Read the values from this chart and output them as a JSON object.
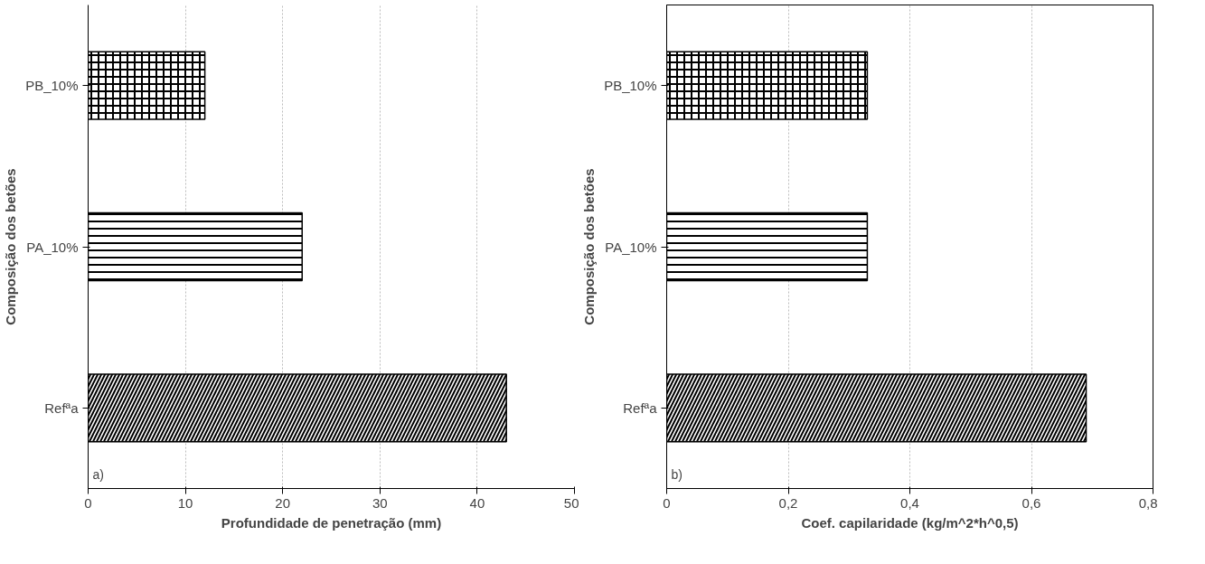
{
  "chart_data": [
    {
      "type": "bar",
      "orientation": "horizontal",
      "categories": [
        "PB_10%",
        "PA_10%",
        "Refªa"
      ],
      "values": [
        12,
        22,
        43
      ],
      "colors": [
        "#000000",
        "#000000",
        "#000000"
      ],
      "xlim": [
        0,
        50
      ],
      "xticks": [
        0,
        10,
        20,
        30,
        40,
        50
      ],
      "xlabel": "Profundidade de penetração (mm)",
      "ylabel": "Composição dos betões",
      "grid": "x",
      "annotations": [
        "a)"
      ]
    },
    {
      "type": "bar",
      "orientation": "horizontal",
      "categories": [
        "PB_10%",
        "PA_10%",
        "Refªa"
      ],
      "values": [
        0.33,
        0.33,
        0.69
      ],
      "colors": [
        "#000000",
        "#000000",
        "#000000"
      ],
      "xlim": [
        0,
        0.8
      ],
      "xticks": [
        {
          "value": 0,
          "label": "0"
        },
        {
          "value": 0.2,
          "label": "0,2"
        },
        {
          "value": 0.4,
          "label": "0,4"
        },
        {
          "value": 0.6,
          "label": "0,6"
        },
        {
          "value": 0.8,
          "label": "0,8"
        }
      ],
      "xlabel": "Coef. capilaridade (kg/m^2*h^0,5)",
      "ylabel": "Composição dos betões",
      "grid": "x",
      "annotations": [
        "b)"
      ]
    }
  ]
}
